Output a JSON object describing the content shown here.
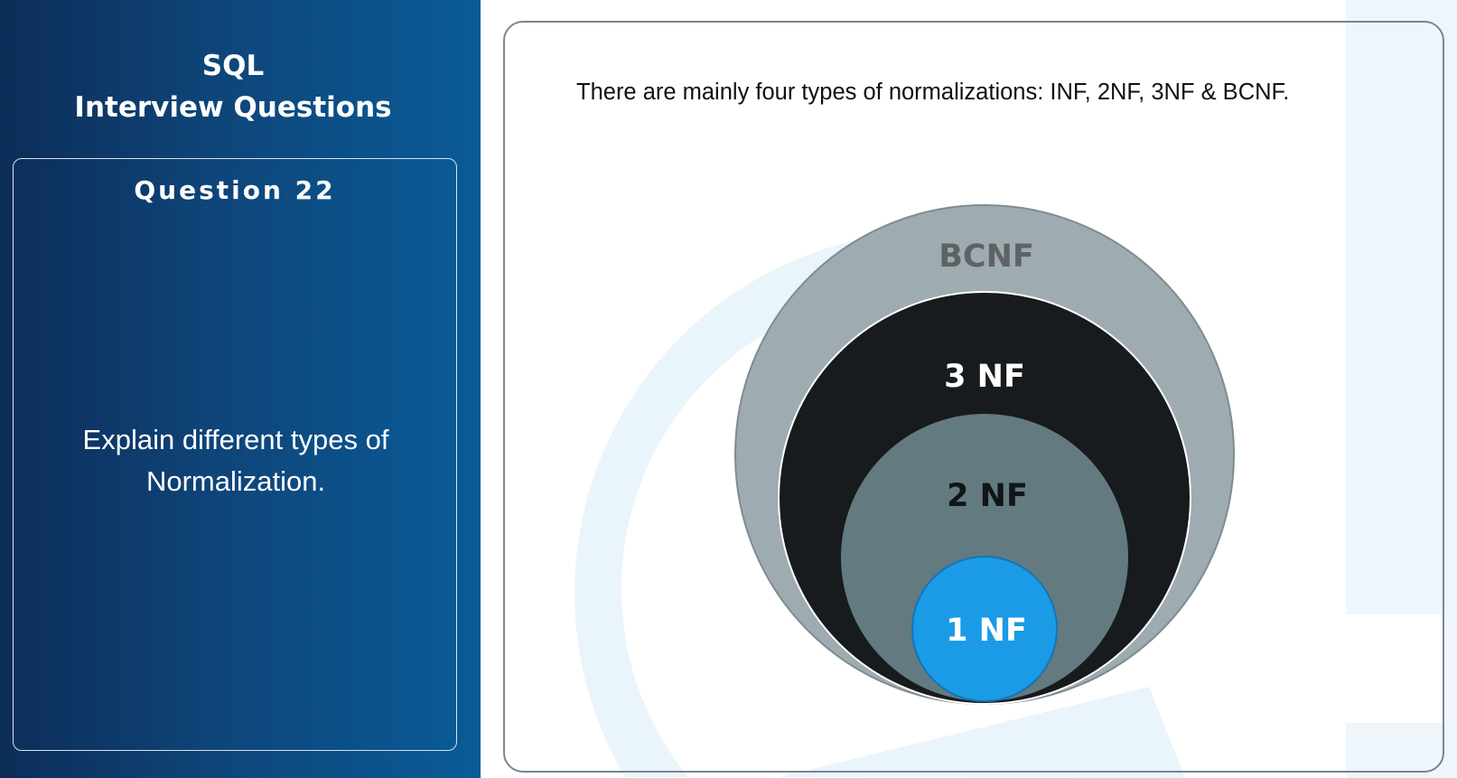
{
  "sidebar": {
    "title_line1": "SQL",
    "title_line2": "Interview Questions",
    "question_number": "Question 22",
    "question_line1": "Explain different types of",
    "question_line2": "Normalization."
  },
  "content": {
    "intro": "There are mainly four types of normalizations: INF, 2NF, 3NF & BCNF."
  },
  "diagram": {
    "levels": [
      {
        "label": "BCNF",
        "fill": "#9eabb0",
        "text_color": "#5e6265"
      },
      {
        "label": "3 NF",
        "fill": "#171b1d",
        "text_color": "#ffffff"
      },
      {
        "label": "2 NF",
        "fill": "#637a80",
        "text_color": "#111518"
      },
      {
        "label": "1 NF",
        "fill": "#1b9be6",
        "text_color": "#ffffff"
      }
    ]
  }
}
